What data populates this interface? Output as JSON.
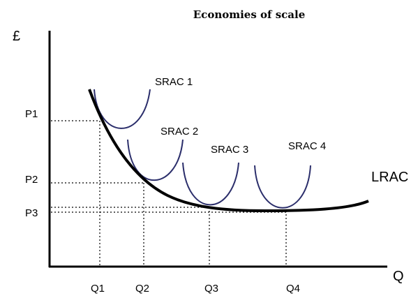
{
  "title": "Economies of scale",
  "axes": {
    "y_label": "£",
    "x_label": "Q"
  },
  "price_labels": [
    "P1",
    "P2",
    "P3"
  ],
  "quantity_labels": [
    "Q1",
    "Q2",
    "Q3",
    "Q4"
  ],
  "curves": {
    "srac": [
      "SRAC 1",
      "SRAC 2",
      "SRAC 3",
      "SRAC 4"
    ],
    "lrac": "LRAC"
  },
  "colors": {
    "srac": "#2b2e6b",
    "axis": "#000000",
    "lrac": "#000000"
  }
}
